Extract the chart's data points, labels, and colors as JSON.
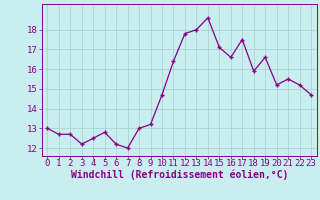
{
  "x": [
    0,
    1,
    2,
    3,
    4,
    5,
    6,
    7,
    8,
    9,
    10,
    11,
    12,
    13,
    14,
    15,
    16,
    17,
    18,
    19,
    20,
    21,
    22,
    23
  ],
  "y": [
    13.0,
    12.7,
    12.7,
    12.2,
    12.5,
    12.8,
    12.2,
    12.0,
    13.0,
    13.2,
    14.7,
    16.4,
    17.8,
    18.0,
    18.6,
    17.1,
    16.6,
    17.5,
    15.9,
    16.6,
    15.2,
    15.5,
    15.2,
    14.7
  ],
  "line_color": "#880088",
  "marker": "+",
  "marker_size": 3.5,
  "marker_linewidth": 1.0,
  "xlabel": "Windchill (Refroidissement éolien,°C)",
  "xlabel_fontsize": 7,
  "xtick_labels": [
    "0",
    "1",
    "2",
    "3",
    "4",
    "5",
    "6",
    "7",
    "8",
    "9",
    "10",
    "11",
    "12",
    "13",
    "14",
    "15",
    "16",
    "17",
    "18",
    "19",
    "20",
    "21",
    "22",
    "23"
  ],
  "ytick_values": [
    12,
    13,
    14,
    15,
    16,
    17,
    18
  ],
  "ylim": [
    11.6,
    19.3
  ],
  "xlim": [
    -0.5,
    23.5
  ],
  "background_color": "#c8eef0",
  "grid_color": "#aacccc",
  "tick_color": "#880088",
  "tick_fontsize": 6.5,
  "line_width": 0.9
}
